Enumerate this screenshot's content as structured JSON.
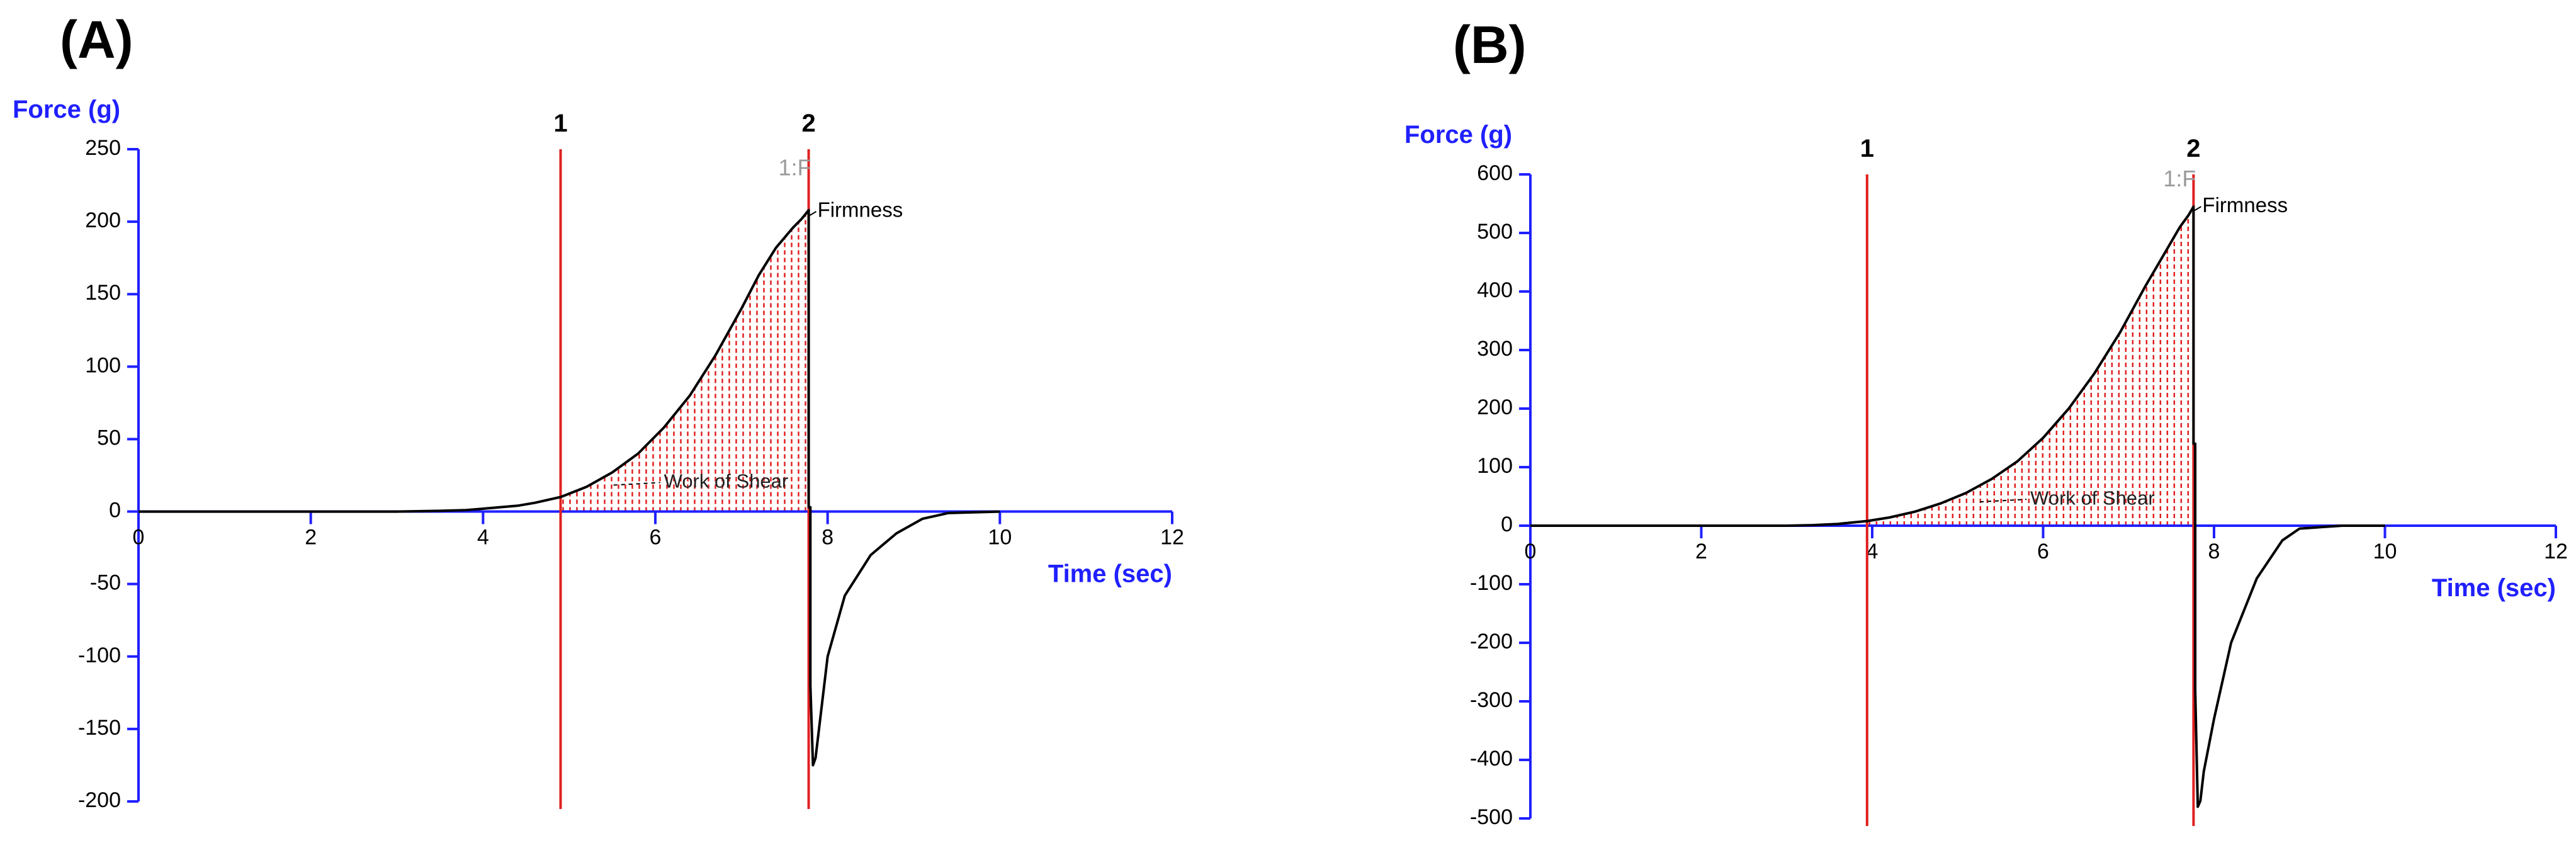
{
  "chart_data": [
    {
      "panel_label": "(A)",
      "type": "line",
      "ylabel": "Force (g)",
      "xlabel": "Time (sec)",
      "xlim": [
        0,
        12
      ],
      "ylim": [
        -200,
        250
      ],
      "x_ticks": [
        0,
        2,
        4,
        6,
        8,
        10,
        12
      ],
      "y_ticks": [
        250,
        200,
        150,
        100,
        50,
        0,
        -50,
        -100,
        -150,
        -200
      ],
      "grid": false,
      "markers": [
        {
          "label": "1",
          "x": 4.9
        },
        {
          "label": "2",
          "x": 7.78
        }
      ],
      "shaded_area": {
        "from": 4.9,
        "to": 7.78,
        "color": "#e02020"
      },
      "annotations": [
        {
          "text": "1:F",
          "x": 7.78,
          "y": 236
        },
        {
          "text": "Firmness",
          "x": 7.78,
          "y": 207
        },
        {
          "text": "Work of Shear",
          "x": 6.1,
          "y": 20
        }
      ],
      "series": [
        {
          "x": [
            0,
            1,
            2,
            3,
            3.5,
            3.8,
            4.0,
            4.2,
            4.4,
            4.6,
            4.9,
            5.2,
            5.5,
            5.8,
            6.1,
            6.4,
            6.7,
            7.0,
            7.2,
            7.4,
            7.6,
            7.7,
            7.78,
            7.78,
            7.8,
            7.8,
            7.83,
            7.86,
            7.9,
            8.0,
            8.2,
            8.5,
            8.8,
            9.1,
            9.4,
            10.0
          ],
          "y": [
            0,
            0,
            0,
            0,
            0.5,
            1,
            2,
            3,
            4,
            6,
            10,
            17,
            27,
            40,
            58,
            80,
            108,
            140,
            163,
            182,
            196,
            202,
            208,
            3,
            3,
            -120,
            -175,
            -170,
            -150,
            -100,
            -58,
            -30,
            -15,
            -5,
            -1,
            0
          ]
        }
      ]
    },
    {
      "panel_label": "(B)",
      "type": "line",
      "ylabel": "Force (g)",
      "xlabel": "Time (sec)",
      "xlim": [
        0,
        12
      ],
      "ylim": [
        -500,
        600
      ],
      "x_ticks": [
        0,
        2,
        4,
        6,
        8,
        10,
        12
      ],
      "y_ticks": [
        600,
        500,
        400,
        300,
        200,
        100,
        0,
        -100,
        -200,
        -300,
        -400,
        -500
      ],
      "grid": false,
      "markers": [
        {
          "label": "1",
          "x": 3.94
        },
        {
          "label": "2",
          "x": 7.76
        }
      ],
      "shaded_area": {
        "from": 3.94,
        "to": 7.76,
        "color": "#e02020"
      },
      "annotations": [
        {
          "text": "1:F",
          "x": 7.76,
          "y": 590
        },
        {
          "text": "Firmness",
          "x": 7.76,
          "y": 545
        },
        {
          "text": "Work of Shear",
          "x": 5.85,
          "y": 45
        }
      ],
      "series": [
        {
          "x": [
            0,
            1,
            2,
            3,
            3.3,
            3.6,
            3.94,
            4.2,
            4.5,
            4.8,
            5.1,
            5.4,
            5.7,
            6.0,
            6.3,
            6.6,
            6.9,
            7.2,
            7.4,
            7.6,
            7.7,
            7.76,
            7.76,
            7.78,
            7.78,
            7.81,
            7.84,
            7.88,
            8.0,
            8.2,
            8.5,
            8.8,
            9.0,
            9.5,
            10.0
          ],
          "y": [
            0,
            0,
            0,
            0,
            1,
            3,
            8,
            14,
            24,
            38,
            56,
            80,
            110,
            150,
            200,
            260,
            330,
            410,
            460,
            510,
            530,
            545,
            140,
            140,
            -280,
            -480,
            -470,
            -420,
            -330,
            -200,
            -90,
            -25,
            -5,
            0,
            0
          ]
        }
      ]
    }
  ]
}
